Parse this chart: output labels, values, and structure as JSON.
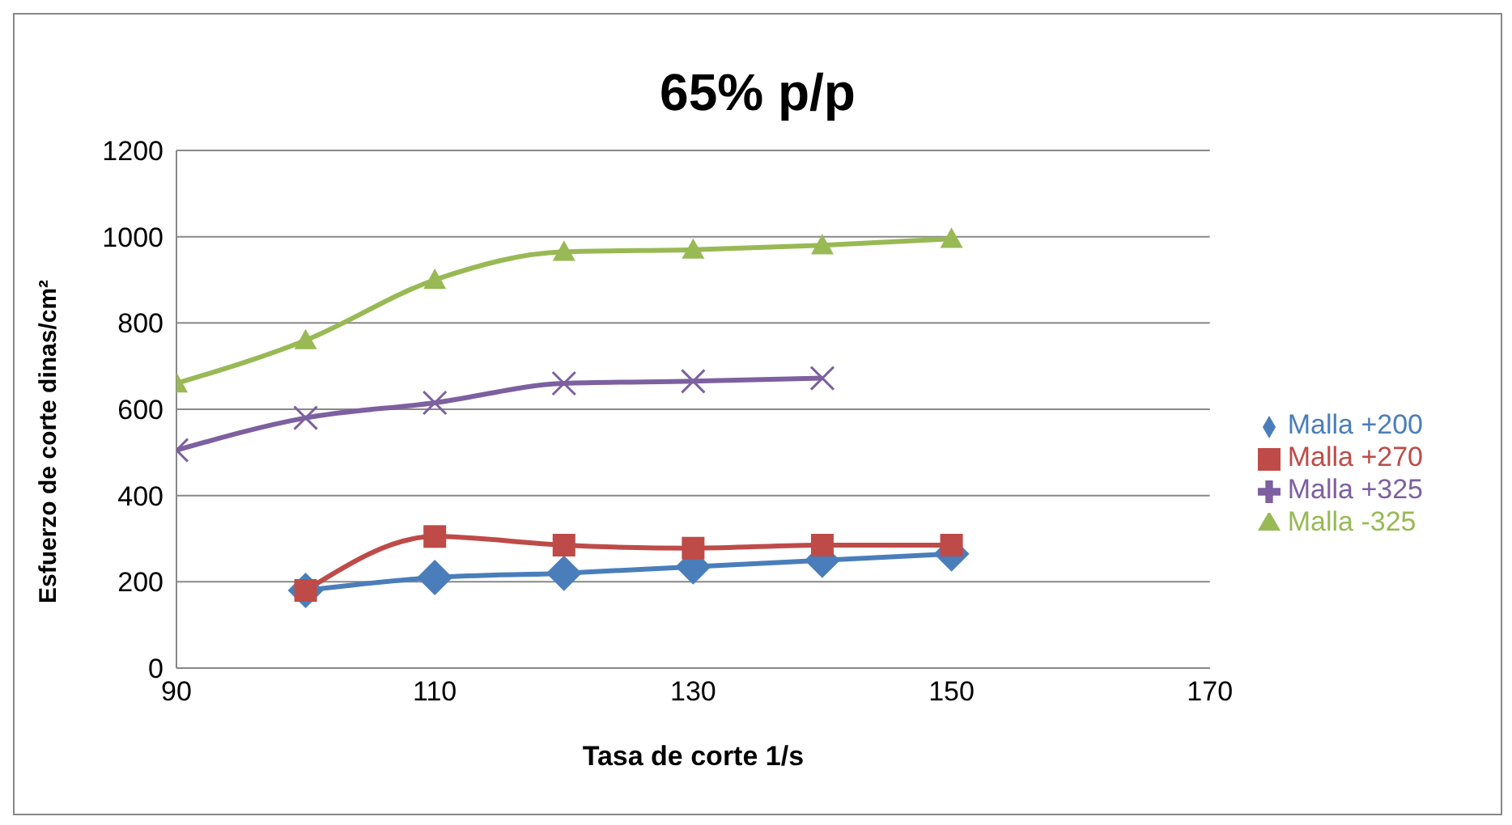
{
  "chart_data": {
    "type": "line",
    "title": "65% p/p",
    "xlabel": "Tasa de corte 1/s",
    "ylabel": "Esfuerzo de corte dinas/cm²",
    "xlim": [
      90,
      170
    ],
    "xticks": [
      90,
      110,
      130,
      150,
      170
    ],
    "ylim": [
      0,
      1200
    ],
    "yticks": [
      0,
      200,
      400,
      600,
      800,
      1000,
      1200
    ],
    "grid": "y",
    "legend": "right",
    "series": [
      {
        "name": "Malla +200",
        "color": "#4a7ebb",
        "marker": "diamond",
        "x": [
          100,
          110,
          120,
          130,
          140,
          150
        ],
        "values": [
          180,
          210,
          220,
          235,
          250,
          265
        ]
      },
      {
        "name": "Malla +270",
        "color": "#be4b48",
        "marker": "square",
        "x": [
          100,
          110,
          120,
          130,
          140,
          150
        ],
        "values": [
          180,
          305,
          285,
          278,
          285,
          285
        ]
      },
      {
        "name": "Malla +325",
        "color": "#7d60a0",
        "marker": "cross",
        "x": [
          90,
          100,
          110,
          120,
          130,
          140
        ],
        "values": [
          505,
          580,
          615,
          660,
          665,
          672
        ]
      },
      {
        "name": "Malla -325",
        "color": "#98b954",
        "marker": "triangle",
        "x": [
          90,
          100,
          110,
          120,
          130,
          140,
          150
        ],
        "values": [
          660,
          760,
          900,
          965,
          970,
          980,
          995
        ]
      }
    ]
  }
}
